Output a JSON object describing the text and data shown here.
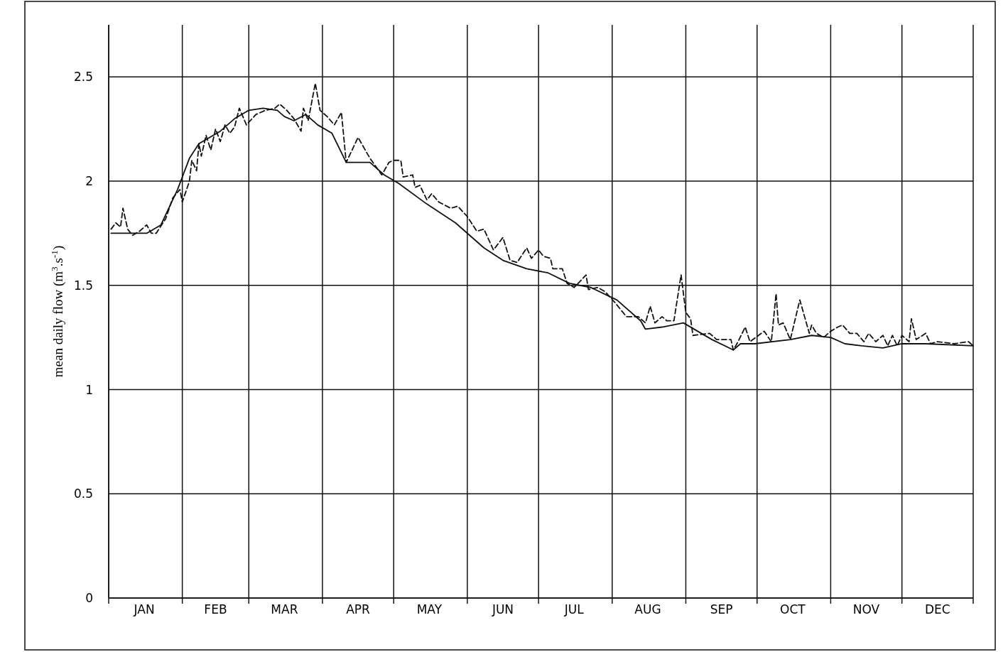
{
  "chart_data": {
    "type": "line",
    "ylabel": "mean daily flow (m$^{3}$.s$^{-1}$)",
    "xlim": [
      "--01-01",
      "--12-31"
    ],
    "ylim": [
      0,
      2.75
    ],
    "xticks": [
      {
        "value": "--01-01",
        "label": null
      },
      {
        "value": "--01-16",
        "label": "JAN"
      },
      {
        "value": "--02-01",
        "label": null
      },
      {
        "value": "--02-15",
        "label": "FEB"
      },
      {
        "value": "--03-01",
        "label": null
      },
      {
        "value": "--03-16",
        "label": "MAR"
      },
      {
        "value": "--04-01",
        "label": null
      },
      {
        "value": "--04-16",
        "label": "APR"
      },
      {
        "value": "--05-01",
        "label": null
      },
      {
        "value": "--05-16",
        "label": "MAY"
      },
      {
        "value": "--06-01",
        "label": null
      },
      {
        "value": "--06-16",
        "label": "JUN"
      },
      {
        "value": "--07-01",
        "label": null
      },
      {
        "value": "--07-16",
        "label": "JUL"
      },
      {
        "value": "--08-01",
        "label": null
      },
      {
        "value": "--08-16",
        "label": "AUG"
      },
      {
        "value": "--09-01",
        "label": null
      },
      {
        "value": "--09-16",
        "label": "SEP"
      },
      {
        "value": "--10-01",
        "label": null
      },
      {
        "value": "--10-16",
        "label": "OCT"
      },
      {
        "value": "--11-01",
        "label": null
      },
      {
        "value": "--11-16",
        "label": "NOV"
      },
      {
        "value": "--12-01",
        "label": null
      },
      {
        "value": "--12-16",
        "label": "DEC"
      },
      {
        "value": "--12-31",
        "label": null
      }
    ],
    "yticks": [
      0,
      0.5,
      1,
      1.5,
      2,
      2.5
    ],
    "grid": true,
    "marker": "none",
    "series": [
      {
        "color": "#111111",
        "line_style": "solid",
        "x": [
          "--01-02",
          "--01-17",
          "--01-23",
          "--01-30",
          "--02-04",
          "--02-08",
          "--02-17",
          "--02-23",
          "--03-01",
          "--03-07",
          "--03-13",
          "--03-16",
          "--03-20",
          "--03-25",
          "--03-30",
          "--04-05",
          "--04-11",
          "--04-21",
          "--04-27",
          "--05-03",
          "--05-15",
          "--05-27",
          "--06-08",
          "--06-16",
          "--06-26",
          "--07-05",
          "--07-14",
          "--07-23",
          "--08-03",
          "--08-13",
          "--08-15",
          "--08-22",
          "--08-31",
          "--09-06",
          "--09-12",
          "--09-21",
          "--09-24",
          "--09-30",
          "--10-15",
          "--10-24",
          "--11-01",
          "--11-07",
          "--11-14",
          "--11-23",
          "--12-01",
          "--12-11",
          "--12-31"
        ],
        "values": [
          1.75,
          1.75,
          1.79,
          1.96,
          2.11,
          2.18,
          2.24,
          2.3,
          2.34,
          2.35,
          2.34,
          2.31,
          2.29,
          2.32,
          2.27,
          2.23,
          2.09,
          2.09,
          2.03,
          1.99,
          1.89,
          1.8,
          1.68,
          1.62,
          1.58,
          1.56,
          1.51,
          1.49,
          1.43,
          1.33,
          1.29,
          1.3,
          1.32,
          1.28,
          1.24,
          1.19,
          1.22,
          1.22,
          1.24,
          1.26,
          1.25,
          1.22,
          1.21,
          1.2,
          1.22,
          1.22,
          1.21
        ]
      },
      {
        "color": "#111111",
        "line_style": "dashed",
        "x": [
          "--01-02",
          "--01-04",
          "--01-06",
          "--01-07",
          "--01-09",
          "--01-11",
          "--01-14",
          "--01-17",
          "--01-19",
          "--01-21",
          "--01-25",
          "--01-28",
          "--01-31",
          "--02-01",
          "--02-04",
          "--02-05",
          "--02-07",
          "--02-08",
          "--02-09",
          "--02-11",
          "--02-13",
          "--02-15",
          "--02-17",
          "--02-19",
          "--02-21",
          "--02-23",
          "--02-25",
          "--02-28",
          "--03-04",
          "--03-08",
          "--03-12",
          "--03-14",
          "--03-17",
          "--03-20",
          "--03-23",
          "--03-24",
          "--03-26",
          "--03-29",
          "--03-31",
          "--04-03",
          "--04-06",
          "--04-09",
          "--04-11",
          "--04-16",
          "--04-21",
          "--04-26",
          "--04-29",
          "--05-01",
          "--05-04",
          "--05-05",
          "--05-09",
          "--05-10",
          "--05-12",
          "--05-15",
          "--05-17",
          "--05-20",
          "--05-25",
          "--05-28",
          "--06-01",
          "--06-05",
          "--06-08",
          "--06-12",
          "--06-16",
          "--06-19",
          "--06-22",
          "--06-26",
          "--06-28",
          "--07-01",
          "--07-03",
          "--07-06",
          "--07-07",
          "--07-11",
          "--07-13",
          "--07-16",
          "--07-21",
          "--07-22",
          "--07-26",
          "--07-29",
          "--08-02",
          "--08-07",
          "--08-12",
          "--08-15",
          "--08-17",
          "--08-19",
          "--08-22",
          "--08-24",
          "--08-27",
          "--08-30",
          "--09-01",
          "--09-03",
          "--09-04",
          "--09-11",
          "--09-14",
          "--09-20",
          "--09-21",
          "--09-23",
          "--09-26",
          "--09-28",
          "--10-04",
          "--10-07",
          "--10-09",
          "--10-10",
          "--10-12",
          "--10-15",
          "--10-19",
          "--10-23",
          "--10-24",
          "--10-26",
          "--10-29",
          "--11-01",
          "--11-04",
          "--11-06",
          "--11-09",
          "--11-12",
          "--11-15",
          "--11-17",
          "--11-20",
          "--11-23",
          "--11-25",
          "--11-27",
          "--11-29",
          "--12-01",
          "--12-04",
          "--12-05",
          "--12-07",
          "--12-11",
          "--12-13",
          "--12-16",
          "--12-23",
          "--12-29",
          "--12-31"
        ],
        "values": [
          1.77,
          1.8,
          1.78,
          1.87,
          1.77,
          1.74,
          1.76,
          1.79,
          1.75,
          1.75,
          1.82,
          1.92,
          1.96,
          1.9,
          2.0,
          2.1,
          2.05,
          2.18,
          2.12,
          2.22,
          2.15,
          2.25,
          2.19,
          2.27,
          2.23,
          2.26,
          2.35,
          2.27,
          2.32,
          2.34,
          2.35,
          2.37,
          2.34,
          2.3,
          2.24,
          2.35,
          2.29,
          2.47,
          2.34,
          2.31,
          2.27,
          2.33,
          2.09,
          2.21,
          2.11,
          2.03,
          2.09,
          2.1,
          2.1,
          2.02,
          2.03,
          1.97,
          1.98,
          1.91,
          1.94,
          1.9,
          1.87,
          1.88,
          1.83,
          1.76,
          1.77,
          1.67,
          1.73,
          1.62,
          1.61,
          1.68,
          1.63,
          1.67,
          1.64,
          1.63,
          1.58,
          1.58,
          1.51,
          1.49,
          1.55,
          1.48,
          1.49,
          1.47,
          1.42,
          1.35,
          1.35,
          1.32,
          1.4,
          1.32,
          1.35,
          1.33,
          1.33,
          1.55,
          1.37,
          1.34,
          1.26,
          1.27,
          1.24,
          1.24,
          1.19,
          1.23,
          1.3,
          1.23,
          1.28,
          1.23,
          1.46,
          1.31,
          1.32,
          1.24,
          1.43,
          1.27,
          1.31,
          1.27,
          1.25,
          1.28,
          1.3,
          1.31,
          1.27,
          1.27,
          1.23,
          1.27,
          1.23,
          1.26,
          1.21,
          1.26,
          1.21,
          1.26,
          1.23,
          1.34,
          1.24,
          1.27,
          1.22,
          1.23,
          1.22,
          1.23,
          1.21
        ]
      }
    ]
  }
}
